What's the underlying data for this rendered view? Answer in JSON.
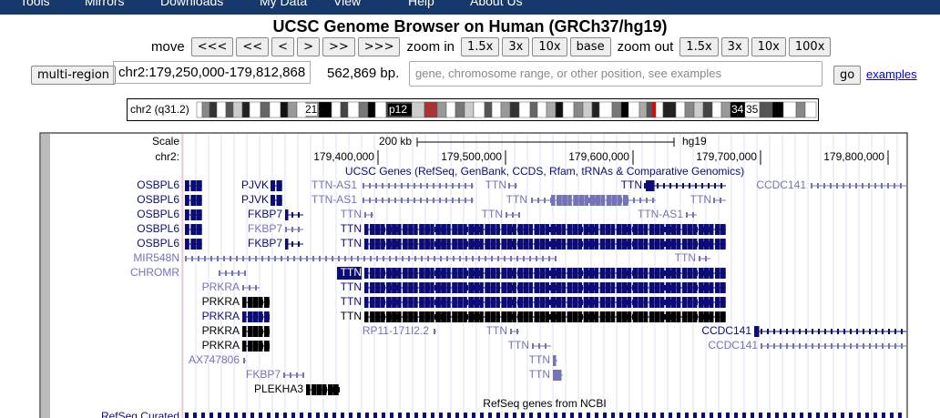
{
  "nav": [
    "Tools",
    "Mirrors",
    "Downloads",
    "My Data",
    "View",
    "Help",
    "About Us"
  ],
  "title": "UCSC Genome Browser on Human (GRCh37/hg19)",
  "controls": {
    "move_label": "move",
    "move_buttons": [
      "<<<",
      "<<",
      "<",
      ">",
      ">>",
      ">>>"
    ],
    "zoom_in_label": "zoom in",
    "zoom_in_buttons": [
      "1.5x",
      "3x",
      "10x",
      "base"
    ],
    "zoom_out_label": "zoom out",
    "zoom_out_buttons": [
      "1.5x",
      "3x",
      "10x",
      "100x"
    ],
    "multi_region": "multi-region",
    "position": "chr2:179,250,000-179,812,868",
    "size": "562,869 bp.",
    "search_placeholder": "gene, chromosome range, or other position, see examples",
    "go": "go",
    "examples": "examples"
  },
  "ideogram": {
    "label": "chr2 (q31.2)",
    "bands": [
      "21",
      "p12",
      "34",
      "35"
    ]
  },
  "chart_data": {
    "type": "genome-tracks",
    "scale_label": "Scale",
    "scale_bar": "200 kb",
    "assembly": "hg19",
    "chrom_label": "chr2:",
    "xlim": [
      179250000,
      179812868
    ],
    "xticks": [
      {
        "value": 179400000,
        "label": "179,400,000"
      },
      {
        "value": 179500000,
        "label": "179,500,000"
      },
      {
        "value": 179600000,
        "label": "179,600,000"
      },
      {
        "value": 179700000,
        "label": "179,700,000"
      },
      {
        "value": 179800000,
        "label": "179,800,000"
      }
    ]
  },
  "tracks": {
    "ucsc_genes": {
      "title": "UCSC Genes (RefSeq, GenBank, CCDS, Rfam, tRNAs & Comparative Genomics)",
      "rows": [
        [
          "OSBPL6",
          "PJVK",
          "TTN-AS1",
          "TTN",
          "TTN",
          "CCDC141"
        ],
        [
          "OSBPL6",
          "PJVK",
          "TTN-AS1",
          "TTN",
          "TTN"
        ],
        [
          "OSBPL6",
          "FKBP7",
          "TTN",
          "TTN",
          "TTN-AS1"
        ],
        [
          "OSBPL6",
          "FKBP7",
          "TTN"
        ],
        [
          "OSBPL6",
          "FKBP7",
          "TTN"
        ],
        [
          "MIR548N",
          "TTN"
        ],
        [
          "CHROMR",
          "TTN"
        ],
        [
          "PRKRA",
          "TTN"
        ],
        [
          "PRKRA",
          "TTN"
        ],
        [
          "PRKRA",
          "TTN"
        ],
        [
          "PRKRA",
          "RP11-171I2.2",
          "TTN",
          "CCDC141"
        ],
        [
          "PRKRA",
          "TTN",
          "CCDC141"
        ],
        [
          "AX747806",
          "TTN"
        ],
        [
          "FKBP7",
          "TTN"
        ],
        [
          "PLEKHA3"
        ]
      ]
    },
    "refseq": {
      "title": "RefSeq genes from NCBI",
      "subtrack": "RefSeq Curated"
    }
  }
}
